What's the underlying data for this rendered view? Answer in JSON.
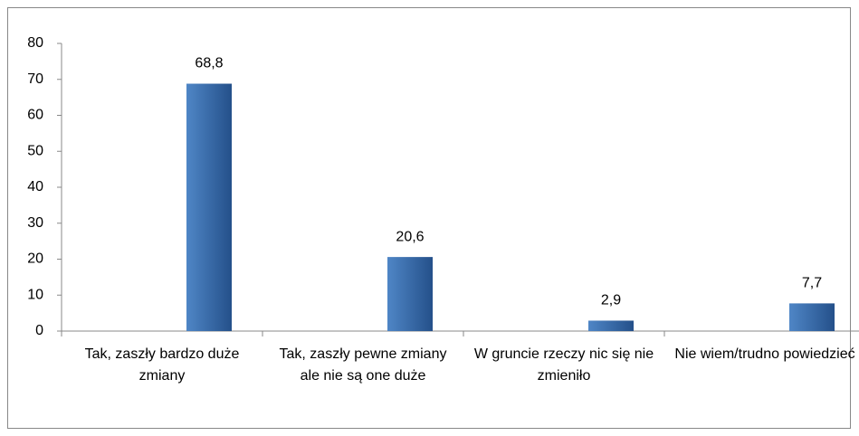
{
  "chart_data": {
    "type": "bar",
    "categories": [
      "Tak, zaszły bardzo duże zmiany",
      "Tak, zaszły pewne zmiany ale nie są one duże",
      "W gruncie rzeczy nic się nie zmieniło",
      "Nie wiem/trudno powiedzieć"
    ],
    "values": [
      68.8,
      20.6,
      2.9,
      7.7
    ],
    "value_labels": [
      "68,8",
      "20,6",
      "2,9",
      "7,7"
    ],
    "color": "#3a6faf",
    "ylim": [
      0,
      80
    ],
    "yticks": [
      0,
      10,
      20,
      30,
      40,
      50,
      60,
      70,
      80
    ],
    "grid": false
  }
}
